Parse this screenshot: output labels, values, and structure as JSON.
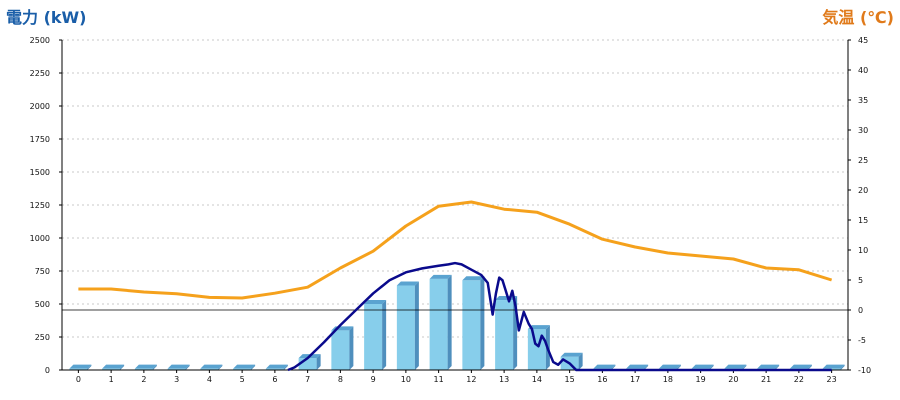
{
  "chart_data": {
    "type": "bar",
    "title": "",
    "y_left_label": "電力 (kW)",
    "y_right_label": "気温 (℃)",
    "categories": [
      "0",
      "1",
      "2",
      "3",
      "4",
      "5",
      "6",
      "7",
      "8",
      "9",
      "10",
      "11",
      "12",
      "13",
      "14",
      "15",
      "16",
      "17",
      "18",
      "19",
      "20",
      "21",
      "22",
      "23"
    ],
    "y_left_ticks": [
      "0",
      "250",
      "500",
      "750",
      "1000",
      "1250",
      "1500",
      "1750",
      "2000",
      "2250",
      "2500"
    ],
    "y_right_ticks": [
      "-10",
      "-5",
      "0",
      "5",
      "10",
      "15",
      "20",
      "25",
      "30",
      "35",
      "40",
      "45"
    ],
    "ylim_left": [
      0,
      2500
    ],
    "ylim_right": [
      -10,
      45
    ],
    "grid": true,
    "series": [
      {
        "values": [
          10,
          10,
          10,
          10,
          10,
          10,
          10,
          90,
          300,
          500,
          640,
          690,
          680,
          530,
          310,
          100,
          10,
          10,
          10,
          10,
          10,
          10,
          10,
          10
        ]
      },
      {
        "values": [
          3.5,
          3.5,
          3.0,
          2.7,
          2.1,
          2.0,
          2.8,
          3.8,
          7.0,
          9.8,
          14.0,
          17.3,
          18.0,
          16.8,
          16.3,
          14.3,
          11.8,
          10.5,
          9.5,
          9.0,
          8.5,
          7.0,
          6.7,
          5.0
        ]
      },
      {
        "x": [
          6.4,
          6.6,
          7.0,
          7.5,
          8.0,
          8.5,
          9.0,
          9.5,
          10.0,
          10.5,
          11.0,
          11.3,
          11.5,
          11.7,
          12.0,
          12.3,
          12.5,
          12.65,
          12.75,
          12.85,
          12.95,
          13.05,
          13.15,
          13.25,
          13.35,
          13.45,
          13.6,
          13.75,
          13.85,
          13.95,
          14.05,
          14.15,
          14.25,
          14.35,
          14.5,
          14.65,
          14.8,
          15.0,
          15.2,
          15.4,
          16,
          17,
          18,
          19,
          20,
          21,
          22,
          23
        ],
        "values": [
          0,
          20,
          90,
          210,
          340,
          460,
          580,
          680,
          740,
          770,
          790,
          800,
          810,
          800,
          760,
          720,
          660,
          420,
          580,
          700,
          680,
          600,
          520,
          600,
          480,
          300,
          440,
          350,
          310,
          200,
          180,
          260,
          220,
          150,
          60,
          40,
          80,
          50,
          0,
          0,
          0,
          0,
          0,
          0,
          0,
          0,
          0,
          0
        ]
      }
    ]
  }
}
